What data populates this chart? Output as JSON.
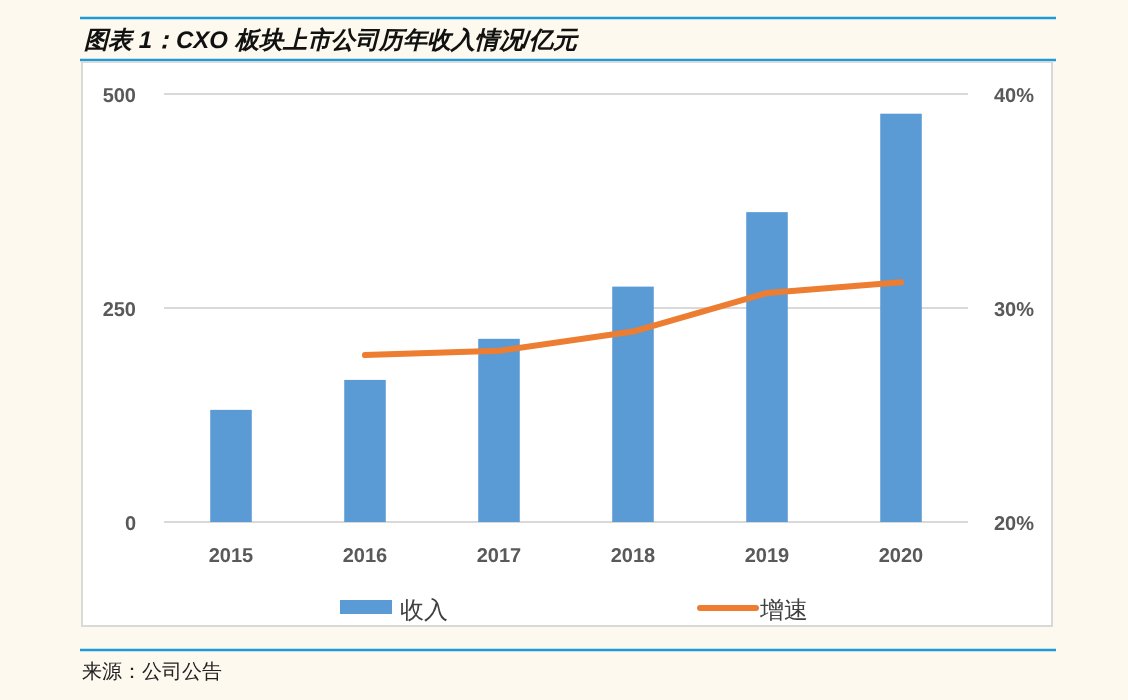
{
  "chart_data": {
    "type": "bar",
    "title": "图表 1：CXO 板块上市公司历年收入情况/亿元",
    "categories": [
      "2015",
      "2016",
      "2017",
      "2018",
      "2019",
      "2020"
    ],
    "series": [
      {
        "name": "收入",
        "color": "#5b9bd5",
        "values": [
          131,
          166,
          214,
          275,
          362,
          477
        ]
      },
      {
        "name": "增速",
        "type": "line",
        "axis": "y2",
        "color": "#ed7d31",
        "values": [
          null,
          27.8,
          28.0,
          28.9,
          30.7,
          31.2
        ]
      }
    ],
    "ylim": [
      0,
      500
    ],
    "yticks": [
      0,
      250,
      500
    ],
    "y2lim": [
      20,
      40
    ],
    "y2ticks": [
      {
        "value": 20,
        "label": "20%"
      },
      {
        "value": 30,
        "label": "30%"
      },
      {
        "value": 40,
        "label": "40%"
      }
    ],
    "grid": "y",
    "legend": "bottom",
    "line_style": "solid",
    "marker": "none",
    "annotations": [
      "来源：公司公告"
    ]
  }
}
